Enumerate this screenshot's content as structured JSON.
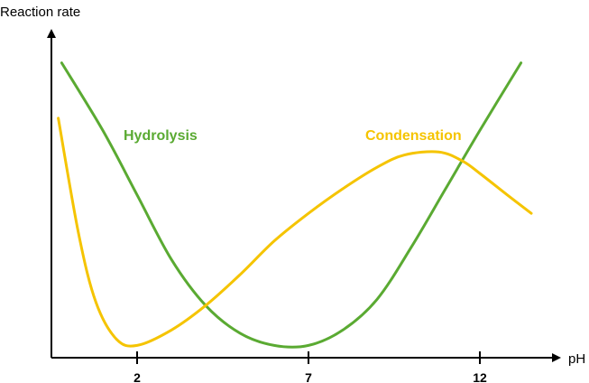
{
  "chart_data": {
    "type": "line",
    "xlabel": "pH",
    "ylabel": "Reaction rate",
    "xlim": [
      -0.5,
      14.3
    ],
    "ylim": [
      0,
      100
    ],
    "xticks": [
      2,
      7,
      12
    ],
    "yticks": [],
    "grid": false,
    "legend": "none",
    "series": [
      {
        "name": "Hydrolysis",
        "color": "#5aaa32",
        "points": [
          [
            -0.2,
            96
          ],
          [
            1,
            74
          ],
          [
            2,
            53
          ],
          [
            3,
            32
          ],
          [
            4,
            17
          ],
          [
            5,
            8
          ],
          [
            6,
            4
          ],
          [
            7,
            4
          ],
          [
            8,
            9
          ],
          [
            9,
            19
          ],
          [
            10,
            36
          ],
          [
            11,
            55
          ],
          [
            12,
            74
          ],
          [
            13.2,
            96
          ]
        ]
      },
      {
        "name": "Condensation",
        "color": "#f5c400",
        "points": [
          [
            -0.3,
            78
          ],
          [
            0.3,
            40
          ],
          [
            0.8,
            18
          ],
          [
            1.4,
            6
          ],
          [
            2,
            4
          ],
          [
            3,
            9
          ],
          [
            4,
            17
          ],
          [
            5,
            27
          ],
          [
            6,
            38
          ],
          [
            7,
            47
          ],
          [
            8,
            55
          ],
          [
            9,
            62
          ],
          [
            9.8,
            66
          ],
          [
            10.8,
            67
          ],
          [
            11.5,
            64
          ],
          [
            12,
            60
          ],
          [
            12.8,
            53
          ],
          [
            13.5,
            47
          ]
        ]
      }
    ]
  }
}
